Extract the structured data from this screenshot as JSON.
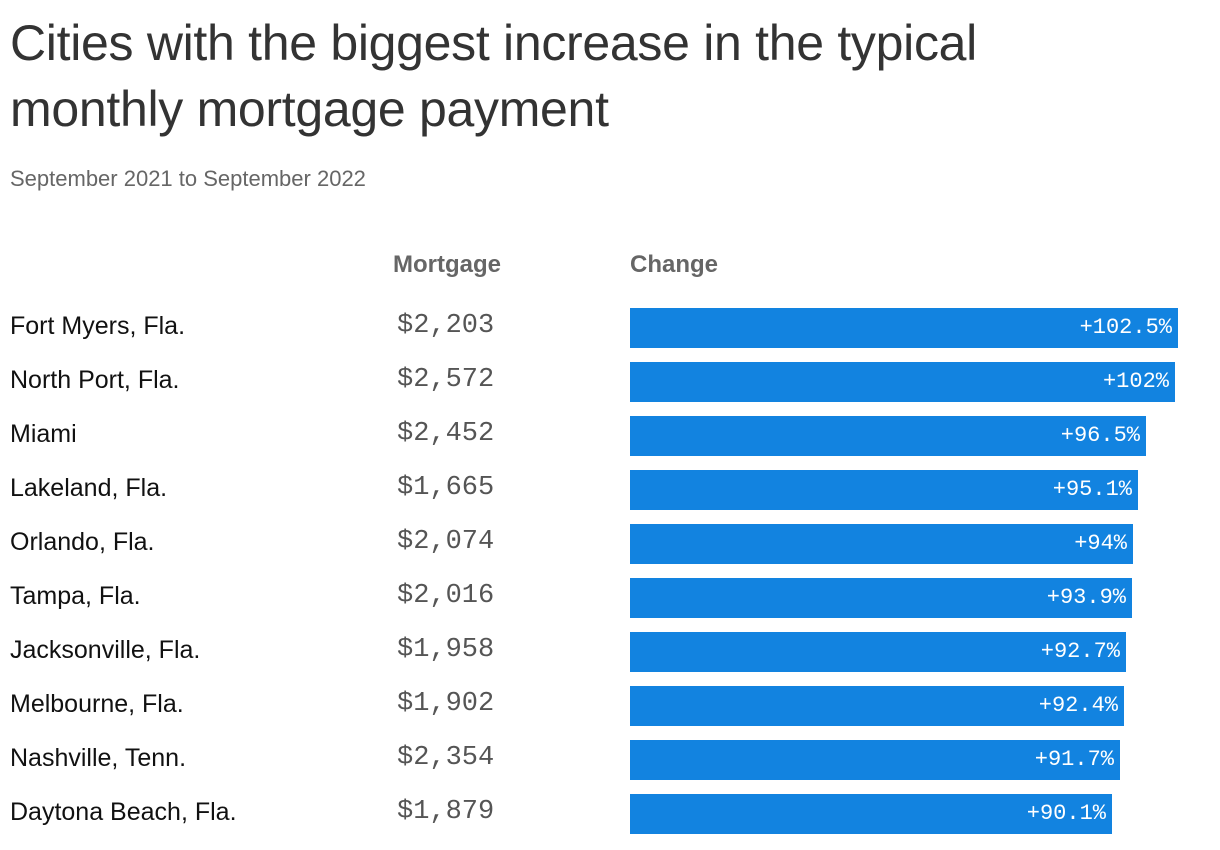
{
  "header": {
    "title": "Cities with the biggest increase in the typical monthly mortgage payment",
    "subtitle": "September 2021 to September 2022"
  },
  "columns": {
    "mortgage": "Mortgage",
    "change": "Change"
  },
  "colors": {
    "bar": "#1283e0"
  },
  "chart_data": {
    "type": "bar",
    "orientation": "horizontal",
    "title": "Cities with the biggest increase in the typical monthly mortgage payment",
    "subtitle": "September 2021 to September 2022",
    "xlim": [
      0,
      102.5
    ],
    "categories": [
      "Fort Myers, Fla.",
      "North Port, Fla.",
      "Miami",
      "Lakeland, Fla.",
      "Orlando, Fla.",
      "Tampa, Fla.",
      "Jacksonville, Fla.",
      "Melbourne, Fla.",
      "Nashville, Tenn.",
      "Daytona Beach, Fla."
    ],
    "rows": [
      {
        "city": "Fort Myers, Fla.",
        "mortgage": "$2,203",
        "change": 102.5,
        "change_label": "+102.5%"
      },
      {
        "city": "North Port, Fla.",
        "mortgage": "$2,572",
        "change": 102,
        "change_label": "+102%"
      },
      {
        "city": "Miami",
        "mortgage": "$2,452",
        "change": 96.5,
        "change_label": "+96.5%"
      },
      {
        "city": "Lakeland, Fla.",
        "mortgage": "$1,665",
        "change": 95.1,
        "change_label": "+95.1%"
      },
      {
        "city": "Orlando, Fla.",
        "mortgage": "$2,074",
        "change": 94,
        "change_label": "+94%"
      },
      {
        "city": "Tampa, Fla.",
        "mortgage": "$2,016",
        "change": 93.9,
        "change_label": "+93.9%"
      },
      {
        "city": "Jacksonville, Fla.",
        "mortgage": "$1,958",
        "change": 92.7,
        "change_label": "+92.7%"
      },
      {
        "city": "Melbourne, Fla.",
        "mortgage": "$1,902",
        "change": 92.4,
        "change_label": "+92.4%"
      },
      {
        "city": "Nashville, Tenn.",
        "mortgage": "$2,354",
        "change": 91.7,
        "change_label": "+91.7%"
      },
      {
        "city": "Daytona Beach, Fla.",
        "mortgage": "$1,879",
        "change": 90.1,
        "change_label": "+90.1%"
      }
    ]
  }
}
